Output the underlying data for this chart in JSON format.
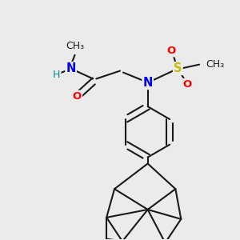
{
  "bg_color": "#ebebeb",
  "line_color": "#1a1a1a",
  "line_width": 1.5,
  "atom_colors": {
    "N": "#0000ee",
    "O": "#ff0000",
    "S": "#ccbb00",
    "H": "#008888"
  },
  "font_size": 9.5,
  "figsize": [
    3.0,
    3.0
  ],
  "dpi": 100
}
